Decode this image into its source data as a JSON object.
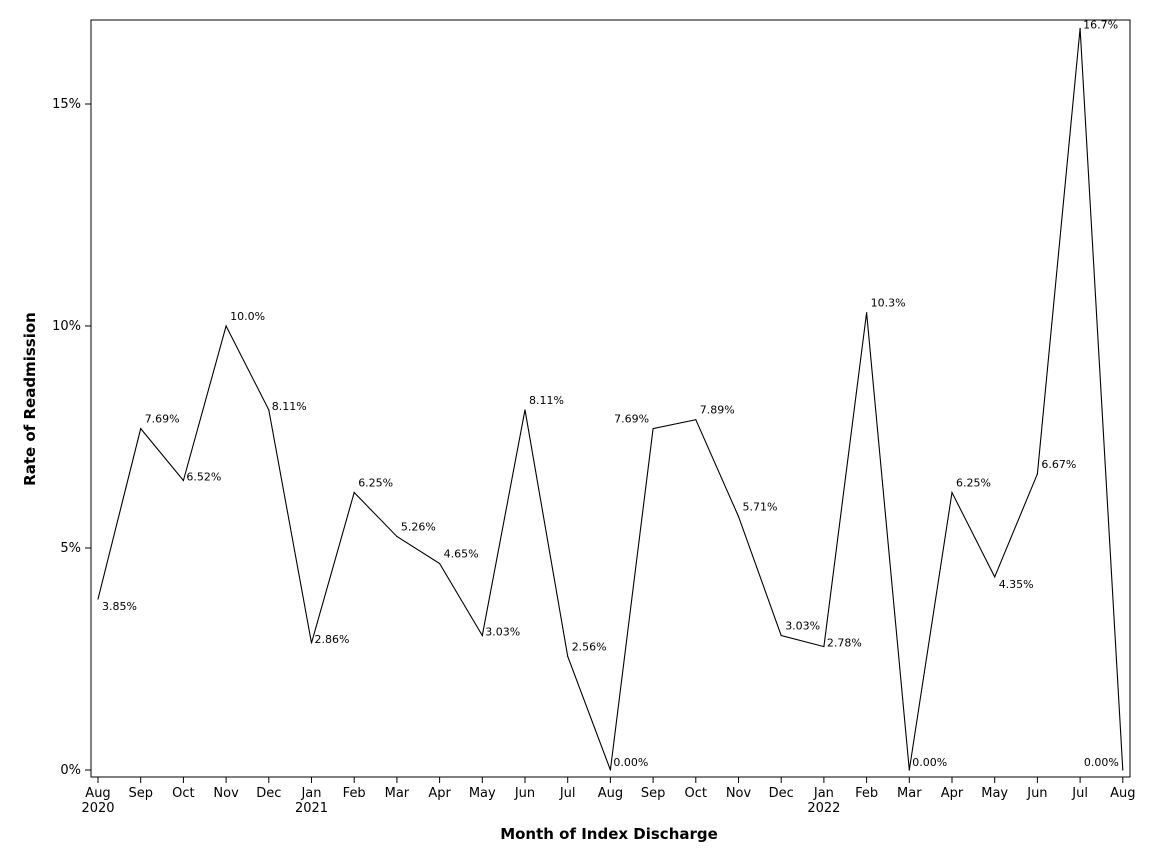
{
  "chart_data": {
    "type": "line",
    "title": "",
    "xlabel": "Month of Index Discharge",
    "ylabel": "Rate of Readmission",
    "ylim": [
      0,
      17
    ],
    "y_ticks": [
      {
        "value": 0,
        "label": "0%"
      },
      {
        "value": 5,
        "label": "5%"
      },
      {
        "value": 10,
        "label": "10%"
      },
      {
        "value": 15,
        "label": "15%"
      }
    ],
    "categories": [
      "Aug",
      "Sep",
      "Oct",
      "Nov",
      "Dec",
      "Jan",
      "Feb",
      "Mar",
      "Apr",
      "May",
      "Jun",
      "Jul",
      "Aug",
      "Sep",
      "Oct",
      "Nov",
      "Dec",
      "Jan",
      "Feb",
      "Mar",
      "Apr",
      "May",
      "Jun",
      "Jul",
      "Aug"
    ],
    "year_labels": [
      "2020",
      "",
      "",
      "",
      "",
      "2021",
      "",
      "",
      "",
      "",
      "",
      "",
      "",
      "",
      "",
      "",
      "",
      "2022",
      "",
      "",
      "",
      "",
      "",
      "",
      ""
    ],
    "series": [
      {
        "name": "Rate of Readmission",
        "values": [
          3.85,
          7.69,
          6.52,
          10.0,
          8.11,
          2.86,
          6.25,
          5.26,
          4.65,
          3.03,
          8.11,
          2.56,
          0.0,
          7.69,
          7.89,
          5.71,
          3.03,
          2.78,
          10.3,
          0.0,
          6.25,
          4.35,
          6.67,
          16.7,
          0.0
        ],
        "labels": [
          "3.85%",
          "7.69%",
          "6.52%",
          "10.0%",
          "8.11%",
          "2.86%",
          "6.25%",
          "5.26%",
          "4.65%",
          "3.03%",
          "8.11%",
          "2.56%",
          "0.00%",
          "7.69%",
          "7.89%",
          "5.71%",
          "3.03%",
          "2.78%",
          "10.3%",
          "0.00%",
          "6.25%",
          "4.35%",
          "6.67%",
          "16.7%",
          "0.00%"
        ],
        "label_positions": [
          "right-below",
          "right-above",
          "right",
          "right-above",
          "right",
          "right",
          "right-above",
          "right-above",
          "right-above",
          "right",
          "right-above",
          "right-above",
          "right",
          "left-above",
          "right-above",
          "right-above",
          "right-above",
          "right",
          "right-above",
          "right",
          "right-above",
          "right-below",
          "right-above",
          "right",
          "left"
        ]
      }
    ],
    "grid": false,
    "line_color": "#000000"
  }
}
